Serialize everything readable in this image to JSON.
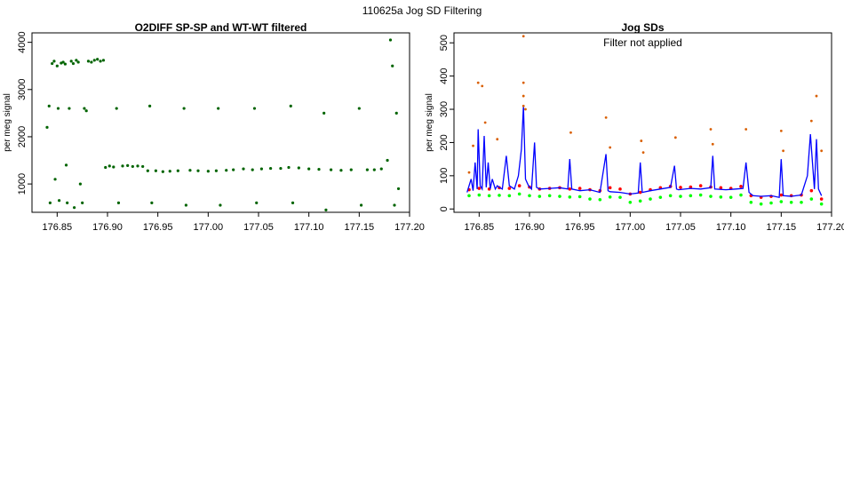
{
  "suptitle": "110625a   Jog SD Filtering",
  "colors": {
    "filtered_green": "#006400",
    "sd_blue": "#0000ff",
    "sd_red": "#ff0000",
    "sd_green": "#00ff00",
    "outlier_orange": "#d95f02"
  },
  "chart_data": [
    {
      "type": "scatter",
      "title": "O2DIFF SP-SP and WT-WT filtered",
      "ylabel": "per meg signal",
      "xlabel": "",
      "xlim": [
        176.825,
        177.2
      ],
      "ylim": [
        400,
        4200
      ],
      "xticks": [
        "176.85",
        "176.90",
        "176.95",
        "177.00",
        "177.05",
        "177.10",
        "177.15",
        "177.20"
      ],
      "yticks": [
        "1000",
        "2000",
        "3000",
        "4000"
      ],
      "grid": false,
      "legend": "none",
      "series": [
        {
          "color": "#006400",
          "points": [
            [
              176.84,
              2200
            ],
            [
              176.842,
              2650
            ],
            [
              176.843,
              600
            ],
            [
              176.845,
              3550
            ],
            [
              176.847,
              3600
            ],
            [
              176.848,
              1100
            ],
            [
              176.85,
              3500
            ],
            [
              176.851,
              2600
            ],
            [
              176.852,
              650
            ],
            [
              176.854,
              3560
            ],
            [
              176.856,
              3580
            ],
            [
              176.858,
              3540
            ],
            [
              176.859,
              1400
            ],
            [
              176.86,
              600
            ],
            [
              176.862,
              2600
            ],
            [
              176.864,
              3600
            ],
            [
              176.866,
              3550
            ],
            [
              176.867,
              500
            ],
            [
              176.869,
              3620
            ],
            [
              176.871,
              3580
            ],
            [
              176.873,
              1000
            ],
            [
              176.875,
              600
            ],
            [
              176.877,
              2600
            ],
            [
              176.879,
              2550
            ],
            [
              176.881,
              3600
            ],
            [
              176.884,
              3580
            ],
            [
              176.887,
              3620
            ],
            [
              176.89,
              3640
            ],
            [
              176.893,
              3600
            ],
            [
              176.896,
              3620
            ],
            [
              176.898,
              1350
            ],
            [
              176.902,
              1380
            ],
            [
              176.906,
              1360
            ],
            [
              176.909,
              2600
            ],
            [
              176.911,
              600
            ],
            [
              176.915,
              1380
            ],
            [
              176.92,
              1390
            ],
            [
              176.925,
              1370
            ],
            [
              176.93,
              1380
            ],
            [
              176.935,
              1370
            ],
            [
              176.94,
              1280
            ],
            [
              176.942,
              2650
            ],
            [
              176.944,
              600
            ],
            [
              176.948,
              1280
            ],
            [
              176.955,
              1260
            ],
            [
              176.962,
              1270
            ],
            [
              176.97,
              1280
            ],
            [
              176.976,
              2600
            ],
            [
              176.978,
              550
            ],
            [
              176.982,
              1290
            ],
            [
              176.99,
              1280
            ],
            [
              177.0,
              1270
            ],
            [
              177.008,
              1280
            ],
            [
              177.01,
              2600
            ],
            [
              177.012,
              550
            ],
            [
              177.018,
              1290
            ],
            [
              177.025,
              1300
            ],
            [
              177.035,
              1320
            ],
            [
              177.044,
              1300
            ],
            [
              177.046,
              2600
            ],
            [
              177.048,
              600
            ],
            [
              177.053,
              1320
            ],
            [
              177.062,
              1330
            ],
            [
              177.072,
              1330
            ],
            [
              177.08,
              1350
            ],
            [
              177.082,
              2650
            ],
            [
              177.084,
              600
            ],
            [
              177.09,
              1340
            ],
            [
              177.1,
              1320
            ],
            [
              177.11,
              1310
            ],
            [
              177.115,
              2500
            ],
            [
              177.117,
              450
            ],
            [
              177.122,
              1300
            ],
            [
              177.132,
              1290
            ],
            [
              177.142,
              1300
            ],
            [
              177.15,
              2600
            ],
            [
              177.152,
              550
            ],
            [
              177.158,
              1300
            ],
            [
              177.165,
              1300
            ],
            [
              177.172,
              1320
            ],
            [
              177.178,
              1500
            ],
            [
              177.181,
              4050
            ],
            [
              177.183,
              3500
            ],
            [
              177.185,
              550
            ],
            [
              177.187,
              2500
            ],
            [
              177.189,
              900
            ]
          ]
        }
      ]
    },
    {
      "type": "line",
      "title": "Jog SDs",
      "subtitle": "Filter not applied",
      "ylabel": "per meg signal",
      "xlabel": "",
      "xlim": [
        176.825,
        177.2
      ],
      "ylim": [
        -10,
        530
      ],
      "xticks": [
        "176.85",
        "176.90",
        "176.95",
        "177.00",
        "177.05",
        "177.10",
        "177.15",
        "177.20"
      ],
      "yticks": [
        "0",
        "100",
        "200",
        "300",
        "400",
        "500"
      ],
      "grid": false,
      "legend": "none",
      "series": [
        {
          "color": "#00ff00",
          "style": "points",
          "x": [
            176.84,
            176.85,
            176.86,
            176.87,
            176.88,
            176.89,
            176.9,
            176.91,
            176.92,
            176.93,
            176.94,
            176.95,
            176.96,
            176.97,
            176.98,
            176.99,
            177.0,
            177.01,
            177.02,
            177.03,
            177.04,
            177.05,
            177.06,
            177.07,
            177.08,
            177.09,
            177.1,
            177.11,
            177.12,
            177.13,
            177.14,
            177.15,
            177.16,
            177.17,
            177.18,
            177.19
          ],
          "y": [
            40,
            42,
            40,
            41,
            40,
            45,
            40,
            38,
            40,
            38,
            36,
            37,
            30,
            28,
            36,
            35,
            20,
            24,
            30,
            35,
            40,
            38,
            40,
            42,
            38,
            36,
            35,
            42,
            20,
            15,
            18,
            22,
            20,
            20,
            30,
            15
          ]
        },
        {
          "color": "#ff0000",
          "style": "points",
          "x": [
            176.84,
            176.85,
            176.86,
            176.87,
            176.88,
            176.89,
            176.9,
            176.91,
            176.92,
            176.93,
            176.94,
            176.95,
            176.96,
            176.97,
            176.98,
            176.99,
            177.0,
            177.01,
            177.02,
            177.03,
            177.04,
            177.05,
            177.06,
            177.07,
            177.08,
            177.09,
            177.1,
            177.11,
            177.12,
            177.13,
            177.14,
            177.15,
            177.16,
            177.17,
            177.18,
            177.19
          ],
          "y": [
            58,
            62,
            60,
            64,
            62,
            70,
            66,
            60,
            62,
            64,
            60,
            62,
            58,
            55,
            64,
            60,
            45,
            50,
            58,
            64,
            68,
            65,
            66,
            70,
            66,
            64,
            62,
            68,
            40,
            35,
            38,
            42,
            40,
            42,
            55,
            30
          ]
        },
        {
          "color": "#0000ff",
          "style": "line",
          "x": [
            176.838,
            176.842,
            176.844,
            176.846,
            176.848,
            176.849,
            176.851,
            176.853,
            176.855,
            176.857,
            176.859,
            176.861,
            176.863,
            176.866,
            176.868,
            176.87,
            176.873,
            176.877,
            176.88,
            176.885,
            176.889,
            176.892,
            176.894,
            176.896,
            176.899,
            176.902,
            176.905,
            176.907,
            176.91,
            176.92,
            176.93,
            176.938,
            176.94,
            176.942,
            176.95,
            176.96,
            176.97,
            176.976,
            176.978,
            176.98,
            176.99,
            177.0,
            177.008,
            177.01,
            177.012,
            177.02,
            177.03,
            177.04,
            177.044,
            177.046,
            177.048,
            177.06,
            177.07,
            177.08,
            177.082,
            177.084,
            177.095,
            177.105,
            177.112,
            177.115,
            177.118,
            177.122,
            177.13,
            177.14,
            177.148,
            177.15,
            177.152,
            177.16,
            177.17,
            177.176,
            177.179,
            177.181,
            177.183,
            177.185,
            177.187,
            177.19
          ],
          "y": [
            50,
            90,
            55,
            140,
            60,
            240,
            70,
            60,
            220,
            65,
            140,
            60,
            90,
            60,
            70,
            65,
            60,
            160,
            70,
            60,
            100,
            180,
            310,
            90,
            70,
            60,
            200,
            65,
            60,
            62,
            64,
            60,
            150,
            60,
            55,
            58,
            50,
            165,
            55,
            52,
            50,
            45,
            48,
            140,
            50,
            55,
            60,
            65,
            130,
            60,
            58,
            62,
            60,
            64,
            160,
            60,
            58,
            60,
            62,
            140,
            50,
            40,
            38,
            40,
            35,
            150,
            40,
            38,
            42,
            100,
            225,
            140,
            60,
            210,
            60,
            40
          ]
        },
        {
          "color": "#d95f02",
          "style": "points",
          "x": [
            176.84,
            176.844,
            176.849,
            176.853,
            176.856,
            176.868,
            176.894,
            176.894,
            176.894,
            176.894,
            176.896,
            176.941,
            176.976,
            176.98,
            177.011,
            177.013,
            177.045,
            177.08,
            177.082,
            177.115,
            177.15,
            177.152,
            177.18,
            177.185,
            177.19
          ],
          "y": [
            110,
            190,
            380,
            370,
            260,
            210,
            520,
            380,
            340,
            310,
            300,
            230,
            275,
            185,
            205,
            170,
            215,
            240,
            195,
            240,
            235,
            175,
            265,
            340,
            175
          ]
        }
      ]
    }
  ]
}
